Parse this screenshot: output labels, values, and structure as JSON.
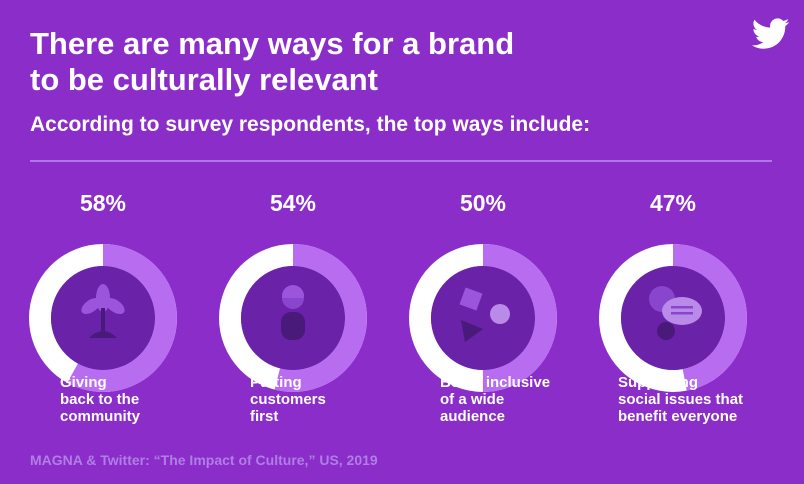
{
  "header": {
    "title_lines": [
      "There are many ways for a brand",
      "to be culturally relevant"
    ],
    "subtitle": "According to survey respondents, the top ways include:",
    "logo_icon": "twitter-bird-icon"
  },
  "colors": {
    "background": "#8a2dc9",
    "ring_filled": "#b86cf0",
    "ring_empty": "#ffffff",
    "inner_circle": "#6a22a8",
    "icon_light": "#9b55dc",
    "icon_dark": "#4a1a7a",
    "source_text": "#b17ee6"
  },
  "chart_data": {
    "type": "pie",
    "unit": "%",
    "categories": [
      "Giving back to the community",
      "Putting customers first",
      "Being inclusive of a wide audience",
      "Supporting social issues that benefit everyone"
    ],
    "values": [
      58,
      54,
      50,
      47
    ],
    "value_labels": [
      "58%",
      "54%",
      "50%",
      "47%"
    ],
    "label_lines": [
      [
        "Giving",
        "back to the",
        "community"
      ],
      [
        "Putting",
        "customers",
        "first"
      ],
      [
        "Being inclusive",
        "of a wide",
        "audience"
      ],
      [
        "Supporting",
        "social issues that",
        "benefit everyone"
      ]
    ],
    "icons": [
      "plant-icon",
      "person-icon",
      "shapes-icon",
      "chat-bubbles-icon"
    ]
  },
  "footer": {
    "source": "MAGNA & Twitter: “The Impact of Culture,” US, 2019"
  }
}
